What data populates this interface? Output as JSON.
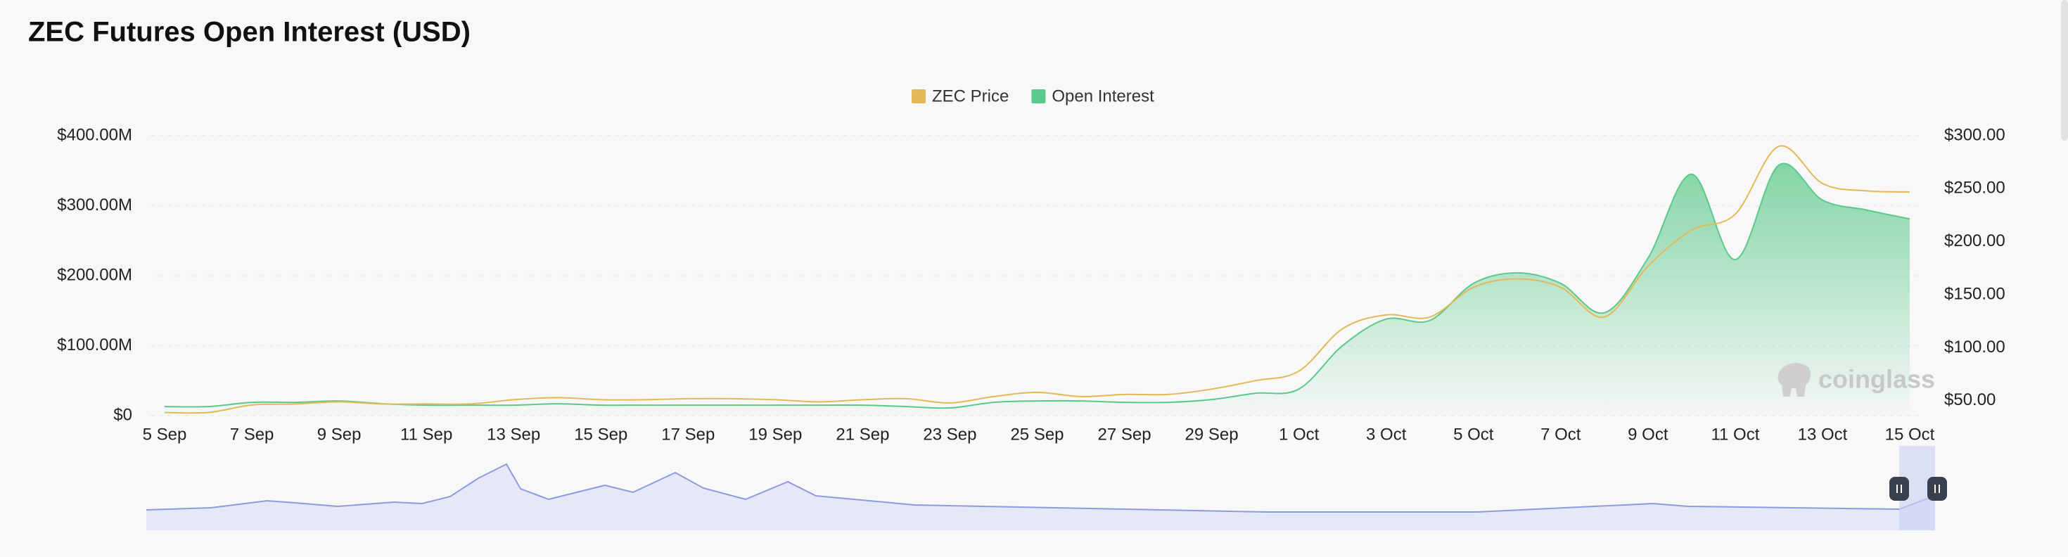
{
  "chart_data": {
    "type": "line",
    "title": "ZEC Futures Open Interest (USD)",
    "watermark": "coinglass",
    "categories": [
      "5 Sep",
      null,
      "7 Sep",
      null,
      "9 Sep",
      null,
      "11 Sep",
      null,
      "13 Sep",
      null,
      "15 Sep",
      null,
      "17 Sep",
      null,
      "19 Sep",
      null,
      "21 Sep",
      null,
      "23 Sep",
      null,
      "25 Sep",
      null,
      "27 Sep",
      null,
      "29 Sep",
      null,
      "1 Oct",
      null,
      "3 Oct",
      null,
      "5 Oct",
      null,
      "7 Oct",
      null,
      "9 Oct",
      null,
      "11 Oct",
      null,
      "13 Oct",
      null,
      "15 Oct"
    ],
    "series": [
      {
        "name": "ZEC Price",
        "color": "#e3b957",
        "axis": "y2",
        "area": false,
        "values": [
          39,
          39,
          46,
          47,
          49,
          47,
          47,
          47,
          51,
          53,
          51,
          51,
          52,
          52,
          51,
          49,
          51,
          52,
          48,
          54,
          58,
          54,
          56,
          56,
          61,
          69,
          78,
          118,
          131,
          129,
          157,
          165,
          157,
          129,
          177,
          211,
          226,
          290,
          255,
          248,
          247
        ]
      },
      {
        "name": "Open Interest",
        "color": "#5cc98a",
        "axis": "y",
        "area": true,
        "values": [
          13000000,
          13000000,
          19000000,
          19000000,
          21000000,
          17000000,
          15000000,
          15000000,
          15000000,
          17000000,
          15000000,
          15000000,
          15000000,
          15000000,
          15000000,
          15000000,
          15000000,
          13000000,
          11000000,
          19000000,
          21000000,
          21000000,
          19000000,
          19000000,
          23000000,
          32000000,
          38000000,
          100000000,
          138000000,
          136000000,
          189000000,
          204000000,
          189000000,
          147000000,
          225000000,
          345000000,
          223000000,
          358000000,
          308000000,
          294000000,
          281000000
        ]
      }
    ],
    "ylim": [
      0,
      400000000
    ],
    "yticks": [
      {
        "value": 0,
        "label": "$0"
      },
      {
        "value": 100000000,
        "label": "$100.00M"
      },
      {
        "value": 200000000,
        "label": "$200.00M"
      },
      {
        "value": 300000000,
        "label": "$300.00M"
      },
      {
        "value": 400000000,
        "label": "$400.00M"
      }
    ],
    "y2lim": [
      36,
      300
    ],
    "y2ticks": [
      {
        "value": 50,
        "label": "$50.00"
      },
      {
        "value": 100,
        "label": "$100.00"
      },
      {
        "value": 150,
        "label": "$150.00"
      },
      {
        "value": 200,
        "label": "$200.00"
      },
      {
        "value": 250,
        "label": "$250.00"
      },
      {
        "value": 300,
        "label": "$300.00"
      }
    ],
    "grid": true
  }
}
